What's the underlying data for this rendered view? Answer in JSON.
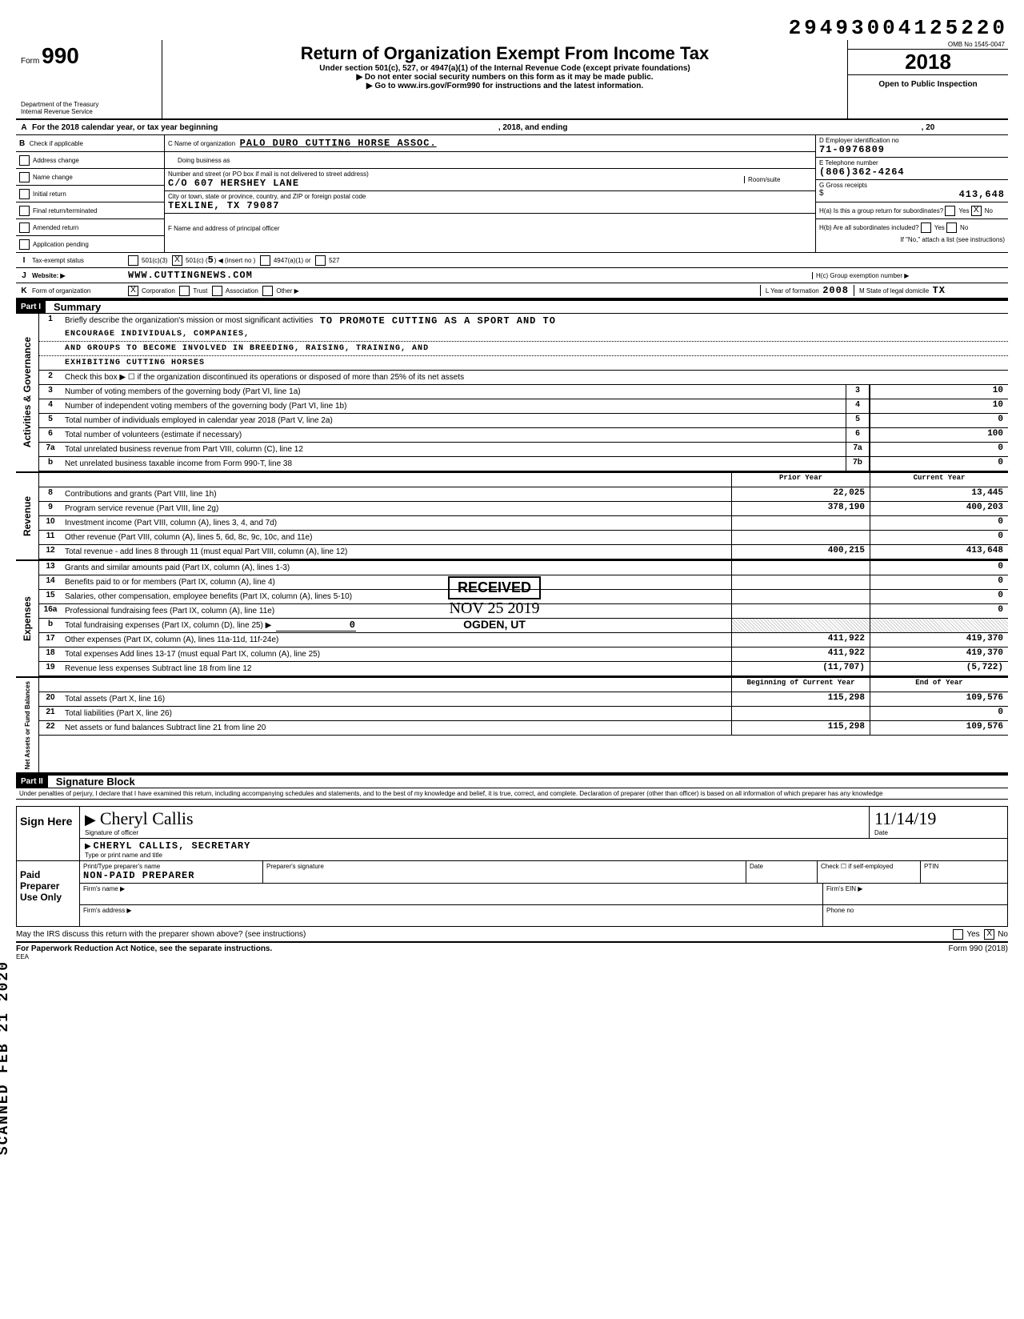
{
  "dln": "29493004125220",
  "omb": "OMB No 1545-0047",
  "form_no": "990",
  "form_label": "Form",
  "title": "Return of Organization Exempt From Income Tax",
  "subtitle": "Under section 501(c), 527, or 4947(a)(1) of the Internal Revenue Code (except private foundations)",
  "note1": "▶ Do not enter social security numbers on this form as it may be made public.",
  "note2": "▶ Go to www.irs.gov/Form990 for instructions and the latest information.",
  "year": "2018",
  "open": "Open to Public Inspection",
  "dept": "Department of the Treasury",
  "irs": "Internal Revenue Service",
  "lineA": "For the 2018 calendar year, or tax year beginning",
  "lineA_mid": ", 2018, and ending",
  "lineA_end": ", 20",
  "checkB_label": "Check if applicable",
  "check_items": [
    "Address change",
    "Name change",
    "Initial return",
    "Final return/terminated",
    "Amended return",
    "Application pending"
  ],
  "C_label": "C  Name of organization",
  "C_val": "PALO DURO CUTTING HORSE ASSOC.",
  "dba": "Doing business as",
  "addr_label": "Number and street (or PO box if mail is not delivered to street address)",
  "addr_val": "C/O 607 HERSHEY LANE",
  "room": "Room/suite",
  "city_label": "City or town, state or province, country, and ZIP or foreign postal code",
  "city_val": "Texline, TX 79087",
  "F_label": "F  Name and address of principal officer",
  "D_label": "D  Employer identification no",
  "D_val": "71-0976809",
  "E_label": "E  Telephone number",
  "E_val": "(806)362-4264",
  "G_label": "G  Gross receipts",
  "G_val": "413,648",
  "Ha": "H(a) Is this a group return for subordinates?",
  "Hb": "H(b) Are all subordinates included?",
  "Hnote": "If \"No,\" attach a list (see instructions)",
  "Hc": "H(c)  Group exemption number  ▶",
  "I_label": "Tax-exempt status",
  "I_501c3": "501(c)(3)",
  "I_501c": "501(c) (",
  "I_num": "5",
  "I_insert": ") ◀ (insert no )",
  "I_4947": "4947(a)(1) or",
  "I_527": "527",
  "J_label": "Website: ▶",
  "J_val": "www.cuttingnews.com",
  "K_label": "Form of organization",
  "K_corp": "Corporation",
  "K_trust": "Trust",
  "K_assoc": "Association",
  "K_other": "Other ▶",
  "L_label": "L  Year of formation",
  "L_val": "2008",
  "M_label": "M  State of legal domicile",
  "M_val": "TX",
  "part1": "Part I",
  "part1_t": "Summary",
  "mission_label": "Briefly describe the organization's mission or most significant activities",
  "mission": "TO PROMOTE CUTTING AS A SPORT AND TO ENCOURAGE INDIVIDUALS, COMPANIES, AND GROUPS TO BECOME INVOLVED IN BREEDING, RAISING, TRAINING, AND EXHIBITING CUTTING HORSES",
  "line2": "Check this box ▶ ☐ if the organization discontinued its operations or disposed of more than 25% of its net assets",
  "lines_gov": [
    {
      "n": "3",
      "t": "Number of voting members of the governing body (Part VI, line 1a)",
      "k": "3",
      "v": "10"
    },
    {
      "n": "4",
      "t": "Number of independent voting members of the governing body (Part VI, line 1b)",
      "k": "4",
      "v": "10"
    },
    {
      "n": "5",
      "t": "Total number of individuals employed in calendar year 2018 (Part V, line 2a)",
      "k": "5",
      "v": "0"
    },
    {
      "n": "6",
      "t": "Total number of volunteers (estimate if necessary)",
      "k": "6",
      "v": "100"
    },
    {
      "n": "7a",
      "t": "Total unrelated business revenue from Part VIII, column (C), line 12",
      "k": "7a",
      "v": "0"
    },
    {
      "n": "b",
      "t": "Net unrelated business taxable income from Form 990-T, line 38",
      "k": "7b",
      "v": "0"
    }
  ],
  "prior_h": "Prior Year",
  "curr_h": "Current Year",
  "rev_lines": [
    {
      "n": "8",
      "t": "Contributions and grants (Part VIII, line 1h)",
      "p": "22,025",
      "c": "13,445"
    },
    {
      "n": "9",
      "t": "Program service revenue (Part VIII, line 2g)",
      "p": "378,190",
      "c": "400,203"
    },
    {
      "n": "10",
      "t": "Investment income (Part VIII, column (A), lines 3, 4, and 7d)",
      "p": "",
      "c": "0"
    },
    {
      "n": "11",
      "t": "Other revenue (Part VIII, column (A), lines 5, 6d, 8c, 9c, 10c, and 11e)",
      "p": "",
      "c": "0"
    },
    {
      "n": "12",
      "t": "Total revenue - add lines 8 through 11 (must equal Part VIII, column (A), line 12)",
      "p": "400,215",
      "c": "413,648"
    }
  ],
  "exp_lines": [
    {
      "n": "13",
      "t": "Grants and similar amounts paid (Part IX, column (A), lines 1-3)",
      "p": "",
      "c": "0"
    },
    {
      "n": "14",
      "t": "Benefits paid to or for members (Part IX, column (A), line 4)",
      "p": "",
      "c": "0"
    },
    {
      "n": "15",
      "t": "Salaries, other compensation, employee benefits (Part IX, column (A), lines 5-10)",
      "p": "",
      "c": "0"
    },
    {
      "n": "16a",
      "t": "Professional fundraising fees (Part IX, column (A), line 11e)",
      "p": "",
      "c": "0"
    }
  ],
  "line16b": "Total fundraising expenses (Part IX, column (D), line 25)  ▶",
  "line16b_v": "0",
  "exp_lines2": [
    {
      "n": "17",
      "t": "Other expenses (Part IX, column (A), lines 11a-11d, 11f-24e)",
      "p": "411,922",
      "c": "419,370"
    },
    {
      "n": "18",
      "t": "Total expenses  Add lines 13-17 (must equal Part IX, column (A), line 25)",
      "p": "411,922",
      "c": "419,370"
    },
    {
      "n": "19",
      "t": "Revenue less expenses  Subtract line 18 from line 12",
      "p": "(11,707)",
      "c": "(5,722)"
    }
  ],
  "boy_h": "Beginning of Current Year",
  "eoy_h": "End of Year",
  "na_lines": [
    {
      "n": "20",
      "t": "Total assets (Part X, line 16)",
      "p": "115,298",
      "c": "109,576"
    },
    {
      "n": "21",
      "t": "Total liabilities (Part X, line 26)",
      "p": "",
      "c": "0"
    },
    {
      "n": "22",
      "t": "Net assets or fund balances  Subtract line 21 from line 20",
      "p": "115,298",
      "c": "109,576"
    }
  ],
  "part2": "Part II",
  "part2_t": "Signature Block",
  "perjury": "Under penalties of perjury, I declare that I have examined this return, including accompanying schedules and statements, and to the best of my knowledge and belief, it is true, correct, and complete. Declaration of preparer (other than officer) is based on all information of which preparer has any knowledge",
  "sign_here": "Sign Here",
  "sig_name": "Cheryl Callis",
  "sig_date": "11/14/19",
  "sig_officer": "Signature of officer",
  "sig_date_l": "Date",
  "officer_name": "CHERYL CALLIS, SECRETARY",
  "type_name": "Type or print name and title",
  "paid": "Paid Preparer Use Only",
  "prep_name_l": "Print/Type preparer's name",
  "prep_name": "NON-PAID PREPARER",
  "prep_sig_l": "Preparer's signature",
  "prep_date_l": "Date",
  "check_self": "Check ☐ if self-employed",
  "ptin": "PTIN",
  "firm_name": "Firm's name  ▶",
  "firm_ein": "Firm's EIN  ▶",
  "firm_addr": "Firm's address ▶",
  "phone": "Phone no",
  "discuss": "May the IRS discuss this return with the preparer shown above? (see instructions)",
  "paperwork": "For Paperwork Reduction Act Notice, see the separate instructions.",
  "form_foot": "Form 990 (2018)",
  "eea": "EEA",
  "received": "RECEIVED",
  "rec_date": "NOV 25 2019",
  "rec_loc": "OGDEN, UT",
  "side_stamp": "SCANNED FEB 21 2020",
  "vlabels": {
    "gov": "Activities & Governance",
    "rev": "Revenue",
    "exp": "Expenses",
    "na": "Net Assets or Fund Balances"
  },
  "yes": "Yes",
  "no": "No"
}
